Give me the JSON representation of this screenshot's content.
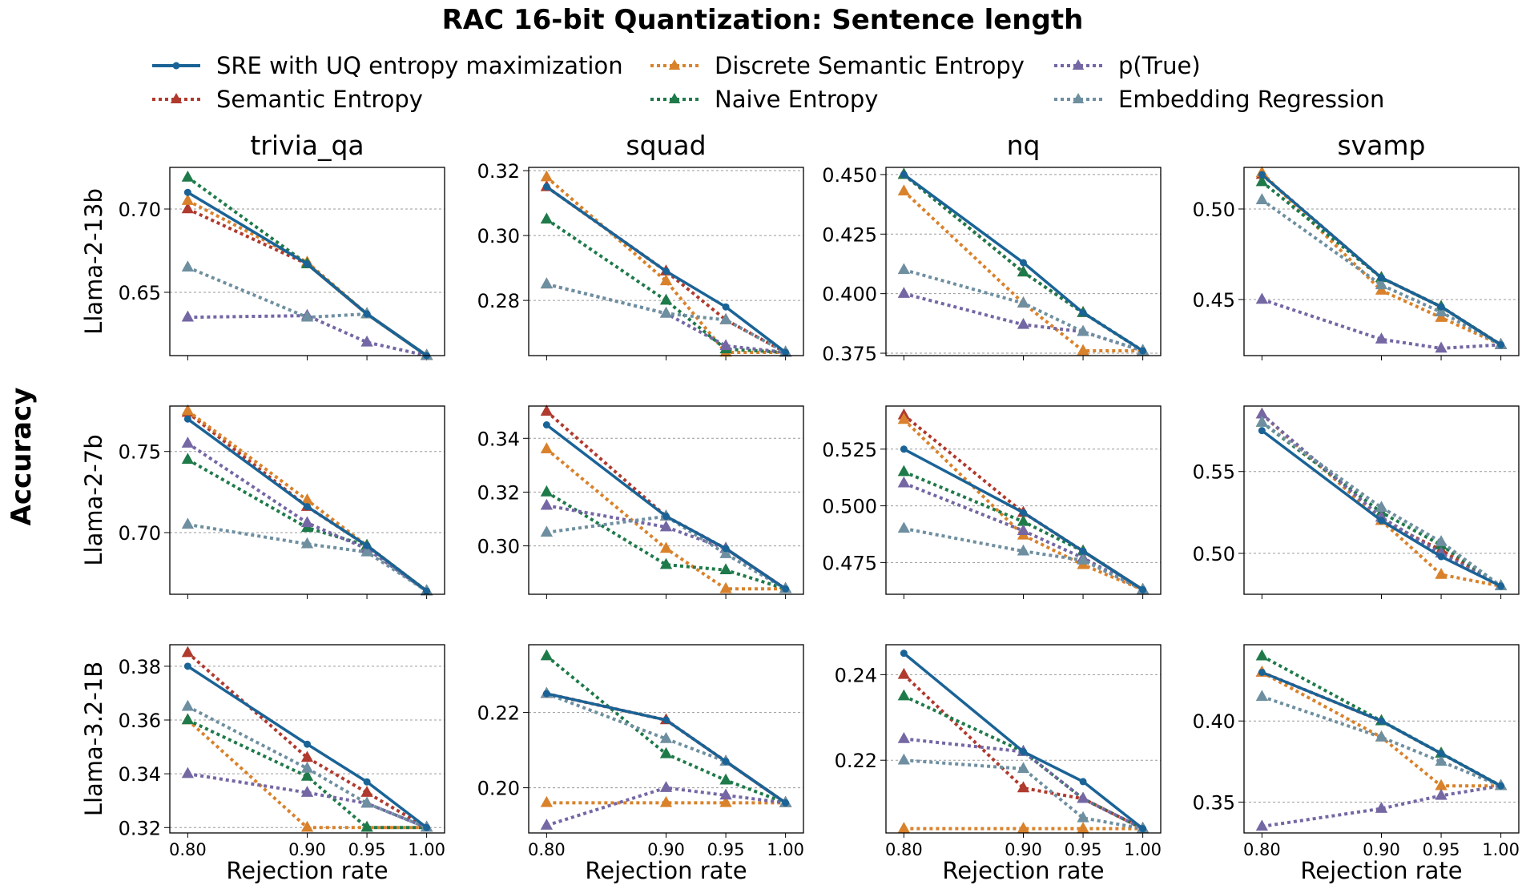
{
  "chart_data": {
    "type": "line",
    "title": "RAC 16-bit Quantization: Sentence length",
    "ylabel": "Accuracy",
    "xlabel": "Rejection rate",
    "x": [
      0.8,
      0.9,
      0.95,
      1.0
    ],
    "x_tick_labels": [
      "0.80",
      "0.90",
      "0.95",
      "1.00"
    ],
    "columns": [
      "trivia_qa",
      "squad",
      "nq",
      "svamp"
    ],
    "rows": [
      "Llama-2-13b",
      "Llama-2-7b",
      "Llama-3.2-1B"
    ],
    "legend": [
      {
        "name": "SRE with UQ entropy maximization",
        "color": "#1a6396",
        "marker": "circle",
        "line": "solid"
      },
      {
        "name": "Semantic Entropy",
        "color": "#b03a2e",
        "marker": "triangle",
        "line": "dotted"
      },
      {
        "name": "Discrete Semantic Entropy",
        "color": "#d9822b",
        "marker": "triangle",
        "line": "dotted"
      },
      {
        "name": "Naive Entropy",
        "color": "#1f7a4a",
        "marker": "triangle",
        "line": "dotted"
      },
      {
        "name": "p(True)",
        "color": "#7467a4",
        "marker": "triangle",
        "line": "dotted"
      },
      {
        "name": "Embedding Regression",
        "color": "#6e8fa0",
        "marker": "triangle",
        "line": "dotted"
      }
    ],
    "panels": [
      {
        "row": "Llama-2-13b",
        "column": "trivia_qa",
        "ylim": [
          0.612,
          0.725
        ],
        "yticks": [
          0.65,
          0.7
        ],
        "ytick_labels": [
          "0.65",
          "0.70"
        ],
        "series": {
          "SRE with UQ entropy maximization": [
            0.71,
            0.667,
            0.637,
            0.612
          ],
          "Semantic Entropy": [
            0.7,
            0.667,
            0.637,
            0.612
          ],
          "Discrete Semantic Entropy": [
            0.705,
            0.668,
            0.637,
            0.612
          ],
          "Naive Entropy": [
            0.719,
            0.667,
            0.637,
            0.612
          ],
          "p(True)": [
            0.635,
            0.636,
            0.62,
            0.612
          ],
          "Embedding Regression": [
            0.665,
            0.635,
            0.637,
            0.612
          ]
        }
      },
      {
        "row": "Llama-2-13b",
        "column": "squad",
        "ylim": [
          0.263,
          0.321
        ],
        "yticks": [
          0.28,
          0.3,
          0.32
        ],
        "ytick_labels": [
          "0.28",
          "0.30",
          "0.32"
        ],
        "series": {
          "SRE with UQ entropy maximization": [
            0.315,
            0.289,
            0.278,
            0.264
          ],
          "Semantic Entropy": [
            0.315,
            0.289,
            0.274,
            0.264
          ],
          "Discrete Semantic Entropy": [
            0.318,
            0.286,
            0.264,
            0.264
          ],
          "Naive Entropy": [
            0.305,
            0.28,
            0.265,
            0.264
          ],
          "p(True)": [
            0.285,
            0.276,
            0.266,
            0.264
          ],
          "Embedding Regression": [
            0.285,
            0.276,
            0.274,
            0.264
          ]
        }
      },
      {
        "row": "Llama-2-13b",
        "column": "nq",
        "ylim": [
          0.374,
          0.453
        ],
        "yticks": [
          0.375,
          0.4,
          0.425,
          0.45
        ],
        "ytick_labels": [
          "0.375",
          "0.400",
          "0.425",
          "0.450"
        ],
        "series": {
          "SRE with UQ entropy maximization": [
            0.45,
            0.413,
            0.392,
            0.376
          ],
          "Semantic Entropy": [
            0.45,
            0.409,
            0.392,
            0.376
          ],
          "Discrete Semantic Entropy": [
            0.443,
            0.396,
            0.376,
            0.376
          ],
          "Naive Entropy": [
            0.45,
            0.409,
            0.392,
            0.376
          ],
          "p(True)": [
            0.4,
            0.387,
            0.384,
            0.376
          ],
          "Embedding Regression": [
            0.41,
            0.396,
            0.384,
            0.376
          ]
        }
      },
      {
        "row": "Llama-2-13b",
        "column": "svamp",
        "ylim": [
          0.419,
          0.523
        ],
        "yticks": [
          0.45,
          0.5
        ],
        "ytick_labels": [
          "0.45",
          "0.50"
        ],
        "series": {
          "SRE with UQ entropy maximization": [
            0.519,
            0.462,
            0.446,
            0.425
          ],
          "Semantic Entropy": [
            0.519,
            0.462,
            0.446,
            0.425
          ],
          "Discrete Semantic Entropy": [
            0.52,
            0.455,
            0.44,
            0.425
          ],
          "Naive Entropy": [
            0.515,
            0.462,
            0.446,
            0.425
          ],
          "p(True)": [
            0.45,
            0.428,
            0.423,
            0.425
          ],
          "Embedding Regression": [
            0.505,
            0.458,
            0.443,
            0.425
          ]
        }
      },
      {
        "row": "Llama-2-7b",
        "column": "trivia_qa",
        "ylim": [
          0.662,
          0.778
        ],
        "yticks": [
          0.7,
          0.75
        ],
        "ytick_labels": [
          "0.70",
          "0.75"
        ],
        "series": {
          "SRE with UQ entropy maximization": [
            0.77,
            0.716,
            0.692,
            0.664
          ],
          "Semantic Entropy": [
            0.774,
            0.716,
            0.692,
            0.664
          ],
          "Discrete Semantic Entropy": [
            0.775,
            0.72,
            0.692,
            0.664
          ],
          "Naive Entropy": [
            0.745,
            0.703,
            0.692,
            0.664
          ],
          "p(True)": [
            0.755,
            0.706,
            0.69,
            0.664
          ],
          "Embedding Regression": [
            0.705,
            0.693,
            0.688,
            0.664
          ]
        }
      },
      {
        "row": "Llama-2-7b",
        "column": "squad",
        "ylim": [
          0.282,
          0.352
        ],
        "yticks": [
          0.3,
          0.32,
          0.34
        ],
        "ytick_labels": [
          "0.30",
          "0.32",
          "0.34"
        ],
        "series": {
          "SRE with UQ entropy maximization": [
            0.345,
            0.311,
            0.299,
            0.284
          ],
          "Semantic Entropy": [
            0.35,
            0.311,
            0.299,
            0.284
          ],
          "Discrete Semantic Entropy": [
            0.336,
            0.299,
            0.284,
            0.284
          ],
          "Naive Entropy": [
            0.32,
            0.293,
            0.291,
            0.284
          ],
          "p(True)": [
            0.315,
            0.307,
            0.299,
            0.284
          ],
          "Embedding Regression": [
            0.305,
            0.311,
            0.297,
            0.284
          ]
        }
      },
      {
        "row": "Llama-2-7b",
        "column": "nq",
        "ylim": [
          0.461,
          0.544
        ],
        "yticks": [
          0.475,
          0.5,
          0.525
        ],
        "ytick_labels": [
          "0.475",
          "0.500",
          "0.525"
        ],
        "series": {
          "SRE with UQ entropy maximization": [
            0.525,
            0.497,
            0.48,
            0.463
          ],
          "Semantic Entropy": [
            0.54,
            0.497,
            0.48,
            0.463
          ],
          "Discrete Semantic Entropy": [
            0.538,
            0.487,
            0.474,
            0.463
          ],
          "Naive Entropy": [
            0.515,
            0.493,
            0.48,
            0.463
          ],
          "p(True)": [
            0.51,
            0.489,
            0.477,
            0.463
          ],
          "Embedding Regression": [
            0.49,
            0.48,
            0.476,
            0.463
          ]
        }
      },
      {
        "row": "Llama-2-7b",
        "column": "svamp",
        "ylim": [
          0.475,
          0.59
        ],
        "yticks": [
          0.5,
          0.55
        ],
        "ytick_labels": [
          "0.50",
          "0.55"
        ],
        "series": {
          "SRE with UQ entropy maximization": [
            0.575,
            0.52,
            0.498,
            0.48
          ],
          "Semantic Entropy": [
            0.585,
            0.52,
            0.502,
            0.48
          ],
          "Discrete Semantic Entropy": [
            0.585,
            0.52,
            0.487,
            0.48
          ],
          "Naive Entropy": [
            0.58,
            0.525,
            0.505,
            0.48
          ],
          "p(True)": [
            0.585,
            0.522,
            0.5,
            0.48
          ],
          "Embedding Regression": [
            0.58,
            0.528,
            0.507,
            0.48
          ]
        }
      },
      {
        "row": "Llama-3.2-1B",
        "column": "trivia_qa",
        "ylim": [
          0.318,
          0.388
        ],
        "yticks": [
          0.32,
          0.34,
          0.36,
          0.38
        ],
        "ytick_labels": [
          "0.32",
          "0.34",
          "0.36",
          "0.38"
        ],
        "series": {
          "SRE with UQ entropy maximization": [
            0.38,
            0.351,
            0.337,
            0.32
          ],
          "Semantic Entropy": [
            0.385,
            0.346,
            0.333,
            0.32
          ],
          "Discrete Semantic Entropy": [
            0.36,
            0.32,
            0.32,
            0.32
          ],
          "Naive Entropy": [
            0.36,
            0.339,
            0.32,
            0.32
          ],
          "p(True)": [
            0.34,
            0.333,
            0.329,
            0.32
          ],
          "Embedding Regression": [
            0.365,
            0.342,
            0.329,
            0.32
          ]
        }
      },
      {
        "row": "Llama-3.2-1B",
        "column": "squad",
        "ylim": [
          0.188,
          0.238
        ],
        "yticks": [
          0.2,
          0.22
        ],
        "ytick_labels": [
          "0.20",
          "0.22"
        ],
        "series": {
          "SRE with UQ entropy maximization": [
            0.225,
            0.218,
            0.207,
            0.196
          ],
          "Semantic Entropy": [
            0.225,
            0.218,
            0.207,
            0.196
          ],
          "Discrete Semantic Entropy": [
            0.196,
            0.196,
            0.196,
            0.196
          ],
          "Naive Entropy": [
            0.235,
            0.209,
            0.202,
            0.196
          ],
          "p(True)": [
            0.19,
            0.2,
            0.198,
            0.196
          ],
          "Embedding Regression": [
            0.225,
            0.213,
            0.207,
            0.196
          ]
        }
      },
      {
        "row": "Llama-3.2-1B",
        "column": "nq",
        "ylim": [
          0.203,
          0.247
        ],
        "yticks": [
          0.22,
          0.24
        ],
        "ytick_labels": [
          "0.22",
          "0.24"
        ],
        "series": {
          "SRE with UQ entropy maximization": [
            0.245,
            0.222,
            0.215,
            0.204
          ],
          "Semantic Entropy": [
            0.24,
            0.2135,
            0.211,
            0.204
          ],
          "Discrete Semantic Entropy": [
            0.204,
            0.204,
            0.204,
            0.204
          ],
          "Naive Entropy": [
            0.235,
            0.222,
            0.211,
            0.204
          ],
          "p(True)": [
            0.225,
            0.222,
            0.211,
            0.204
          ],
          "Embedding Regression": [
            0.22,
            0.218,
            0.2065,
            0.204
          ]
        }
      },
      {
        "row": "Llama-3.2-1B",
        "column": "svamp",
        "ylim": [
          0.331,
          0.447
        ],
        "yticks": [
          0.35,
          0.4
        ],
        "ytick_labels": [
          "0.35",
          "0.40"
        ],
        "series": {
          "SRE with UQ entropy maximization": [
            0.43,
            0.4,
            0.38,
            0.36
          ],
          "Semantic Entropy": [
            0.43,
            0.4,
            0.38,
            0.36
          ],
          "Discrete Semantic Entropy": [
            0.43,
            0.39,
            0.36,
            0.36
          ],
          "Naive Entropy": [
            0.44,
            0.4,
            0.38,
            0.36
          ],
          "p(True)": [
            0.335,
            0.346,
            0.354,
            0.36
          ],
          "Embedding Regression": [
            0.415,
            0.39,
            0.375,
            0.36
          ]
        }
      }
    ]
  }
}
